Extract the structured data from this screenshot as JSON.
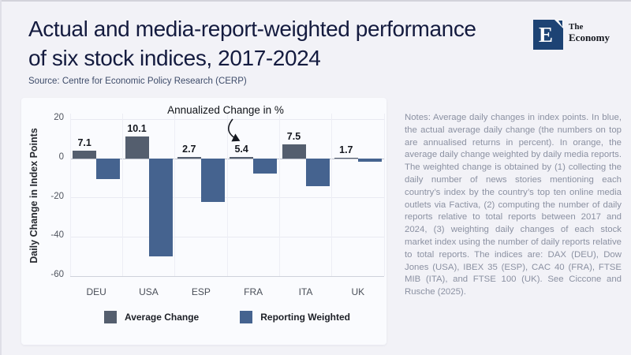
{
  "header": {
    "title_lines": [
      "Actual and media-report-weighted performance",
      "of six stock indices, 2017-2024"
    ],
    "source": "Source: Centre for Economic Policy Research (CERP)",
    "logo": {
      "mark": "E",
      "name_line1": "The",
      "name_line2": "Economy"
    }
  },
  "notes": "Notes: Average daily changes in index points. In blue, the actual average daily change (the numbers on top are annualised returns in percent). In orange, the average daily change weighted by daily media reports. The weighted change is obtained by (1) collecting the daily number of news stories mentioning each country’s index by the country’s top ten online media outlets via Factiva, (2) computing the number of daily reports relative to total reports between 2017 and 2024, (3) weighting daily changes of each stock market index using the number of daily reports relative to total reports. The indices are: DAX (DEU), Dow Jones (USA), IBEX 35 (ESP), CAC 40 (FRA), FTSE MIB (ITA), and FTSE 100 (UK). See Ciccone and Rusche (2025).",
  "colors": {
    "title": "#141b3f",
    "logo_square": "#1d4374",
    "average_change_bar": "#545e6e",
    "reporting_weighted_bar": "#45638f",
    "page_background": "#f2f2f7",
    "panel_background": "#fafbfe"
  },
  "chart_data": {
    "type": "bar",
    "annotation": "Annualized Change in %",
    "ylabel": "Daily Change in Index Points",
    "categories": [
      "DEU",
      "USA",
      "ESP",
      "FRA",
      "ITA",
      "UK"
    ],
    "series": [
      {
        "name": "Average Change",
        "color": "#545e6e",
        "values": [
          4.0,
          11.3,
          0.9,
          1.0,
          7.1,
          0.4
        ]
      },
      {
        "name": "Reporting Weighted",
        "color": "#45638f",
        "values": [
          -10.4,
          -50.0,
          -22.3,
          -7.6,
          -14.0,
          -1.5
        ]
      }
    ],
    "value_labels": [
      "7.1",
      "10.1",
      "2.7",
      "5.4",
      "7.5",
      "1.7"
    ],
    "yticks": [
      20,
      0,
      -20,
      -40,
      -60
    ],
    "ylim": [
      -60,
      23
    ],
    "grid": true,
    "legend_position": "bottom"
  }
}
